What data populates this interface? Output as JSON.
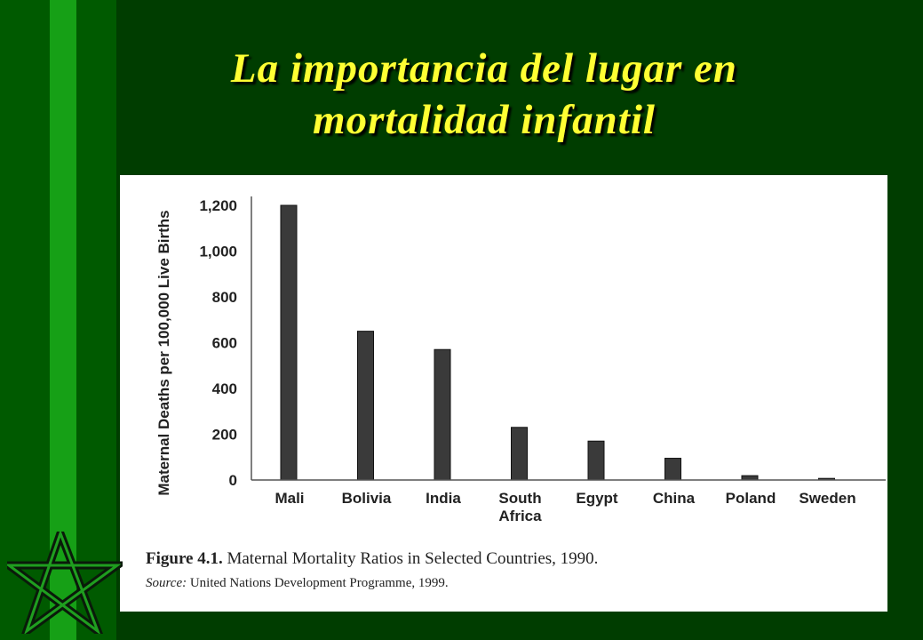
{
  "slide": {
    "title_line1": "La importancia del lugar en",
    "title_line2": "mortalidad infantil"
  },
  "colors": {
    "background": "#003d00",
    "title": "#ffff33",
    "bar": "#3a3a3a"
  },
  "icons": {
    "corner": "star-icon"
  },
  "figure": {
    "caption_label": "Figure 4.1.",
    "caption_text": "Maternal Mortality Ratios in Selected Countries, 1990.",
    "source_label": "Source:",
    "source_text": "United Nations Development Programme, 1999."
  },
  "chart_data": {
    "type": "bar",
    "categories": [
      "Mali",
      "Bolivia",
      "India",
      "South Africa",
      "Egypt",
      "China",
      "Poland",
      "Sweden"
    ],
    "category_lines": [
      [
        "Mali"
      ],
      [
        "Bolivia"
      ],
      [
        "India"
      ],
      [
        "South",
        "Africa"
      ],
      [
        "Egypt"
      ],
      [
        "China"
      ],
      [
        "Poland"
      ],
      [
        "Sweden"
      ]
    ],
    "values": [
      1200,
      650,
      570,
      230,
      170,
      95,
      19,
      7
    ],
    "ylabel": "Maternal Deaths per 100,000 Live Births",
    "ylim": [
      0,
      1200
    ],
    "yticks": [
      0,
      200,
      400,
      600,
      800,
      1000,
      1200
    ],
    "ytick_labels": [
      "0",
      "200",
      "400",
      "600",
      "800",
      "1,000",
      "1,200"
    ],
    "grid": false
  }
}
